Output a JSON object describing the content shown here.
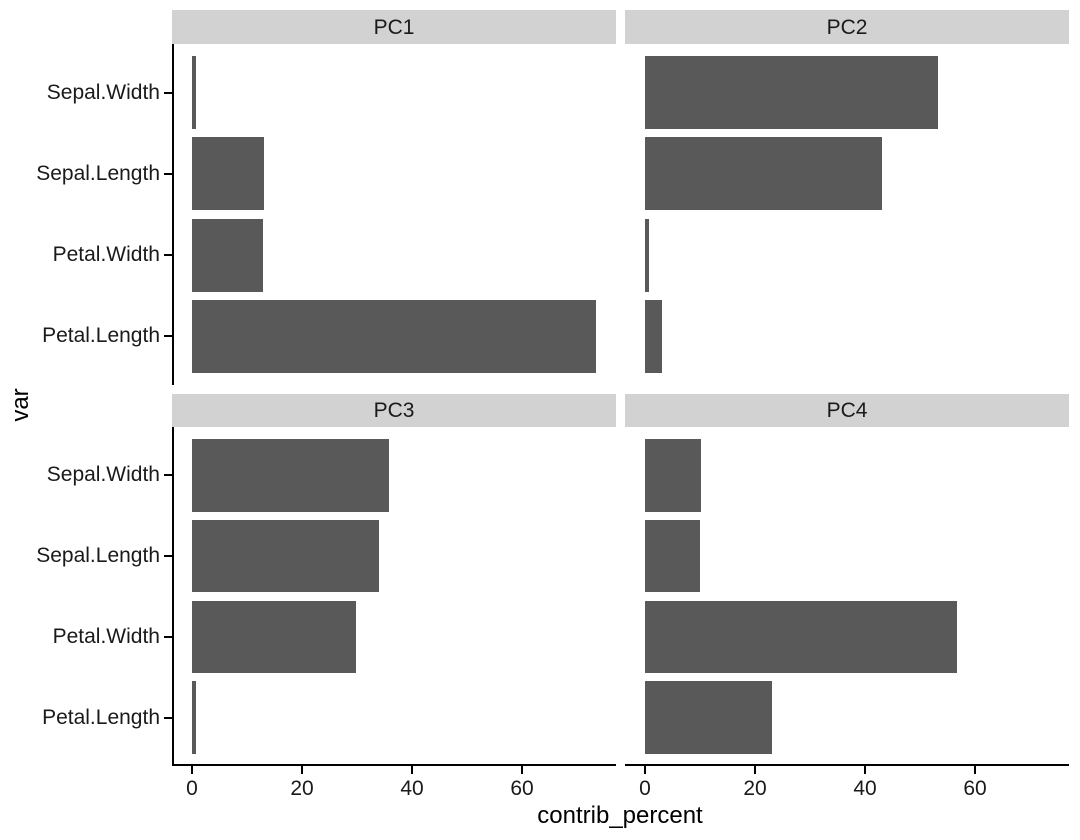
{
  "figure": {
    "background": "#FFFFFF"
  },
  "chart_data": {
    "type": "bar",
    "orientation": "horizontal",
    "facet_layout": "2x2",
    "title": "",
    "xlabel": "contrib_percent",
    "ylabel": "var",
    "categories": [
      "Sepal.Width",
      "Sepal.Length",
      "Petal.Width",
      "Petal.Length"
    ],
    "x_ticks": [
      0,
      20,
      40,
      60
    ],
    "xlim": [
      -3.7,
      77.1
    ],
    "grid": false,
    "legend": "none",
    "facets": [
      {
        "label": "PC1",
        "values": [
          0.7,
          13.1,
          12.8,
          73.4
        ]
      },
      {
        "label": "PC2",
        "values": [
          53.3,
          43.1,
          0.6,
          3.0
        ]
      },
      {
        "label": "PC3",
        "values": [
          35.8,
          33.9,
          29.8,
          0.6
        ]
      },
      {
        "label": "PC4",
        "values": [
          10.2,
          10.0,
          56.8,
          23.0
        ]
      }
    ],
    "colors": {
      "bar_fill": "#595959",
      "strip_background": "#D2D2D2",
      "strip_text": "#1A1A1A",
      "axis_line": "#000000",
      "axis_text": "#1A1A1A",
      "axis_title": "#000000",
      "panel_background": "#FFFFFF"
    }
  }
}
